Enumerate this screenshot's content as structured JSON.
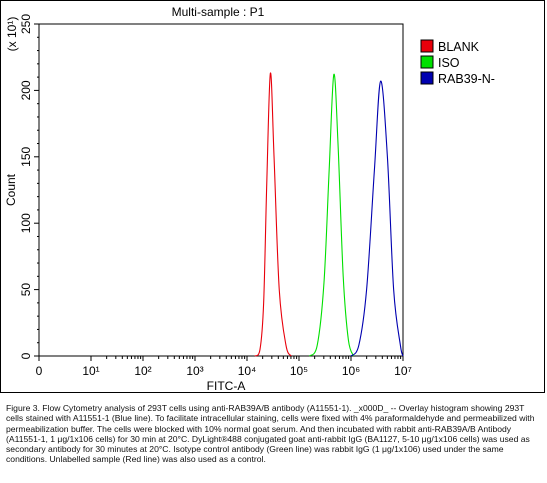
{
  "chart_data": {
    "type": "line",
    "title": "Multi-sample : P1",
    "xlabel": "FITC-A",
    "ylabel": "Count",
    "y_multiplier": "(x 10¹)",
    "xscale": "log",
    "xlim": [
      0,
      7
    ],
    "ylim": [
      0,
      250
    ],
    "x_ticks": [
      {
        "value": 0,
        "label": "0"
      },
      {
        "value": 1,
        "label": "10¹"
      },
      {
        "value": 2,
        "label": "10²"
      },
      {
        "value": 3,
        "label": "10³"
      },
      {
        "value": 4,
        "label": "10⁴"
      },
      {
        "value": 5,
        "label": "10⁵"
      },
      {
        "value": 6,
        "label": "10⁶"
      },
      {
        "value": 7,
        "label": "10⁷"
      }
    ],
    "y_ticks": [
      0,
      50,
      100,
      150,
      200,
      250
    ],
    "legend_position": "top-right",
    "series": [
      {
        "name": "BLANK",
        "color": "#e8000b",
        "x": [
          4.15,
          4.25,
          4.32,
          4.38,
          4.45,
          4.52,
          4.62,
          4.75,
          4.85
        ],
        "y": [
          0,
          5,
          40,
          130,
          213,
          150,
          50,
          8,
          0
        ]
      },
      {
        "name": "ISO",
        "color": "#00e000",
        "x": [
          5.2,
          5.35,
          5.48,
          5.58,
          5.67,
          5.75,
          5.85,
          5.95,
          6.05
        ],
        "y": [
          0,
          8,
          55,
          140,
          212,
          160,
          60,
          12,
          0
        ]
      },
      {
        "name": "RAB39-N-",
        "color": "#0000b0",
        "x": [
          6.0,
          6.15,
          6.3,
          6.45,
          6.57,
          6.7,
          6.82,
          6.95,
          7.0
        ],
        "y": [
          0,
          8,
          50,
          140,
          207,
          150,
          50,
          8,
          0
        ]
      }
    ]
  },
  "caption": "Figure 3. Flow Cytometry analysis of 293T cells using anti-RAB39A/B antibody (A11551-1). _x000D_ -- Overlay histogram showing 293T cells stained with A11551-1 (Blue line). To facilitate intracellular staining, cells were fixed with 4% paraformaldehyde and permeabilized with permeabilization buffer. The cells were blocked with 10% normal goat serum. And then incubated with rabbit anti-RAB39A/B Antibody (A11551-1, 1 μg/1x106 cells) for 30 min at 20°C. DyLight®488 conjugated goat anti-rabbit IgG (BA1127, 5-10 μg/1x106 cells) was used as secondary antibody for 30 minutes at 20°C. Isotype control antibody (Green line) was rabbit IgG (1 μg/1x106) used under the same conditions. Unlabelled sample (Red line) was also used as a control."
}
